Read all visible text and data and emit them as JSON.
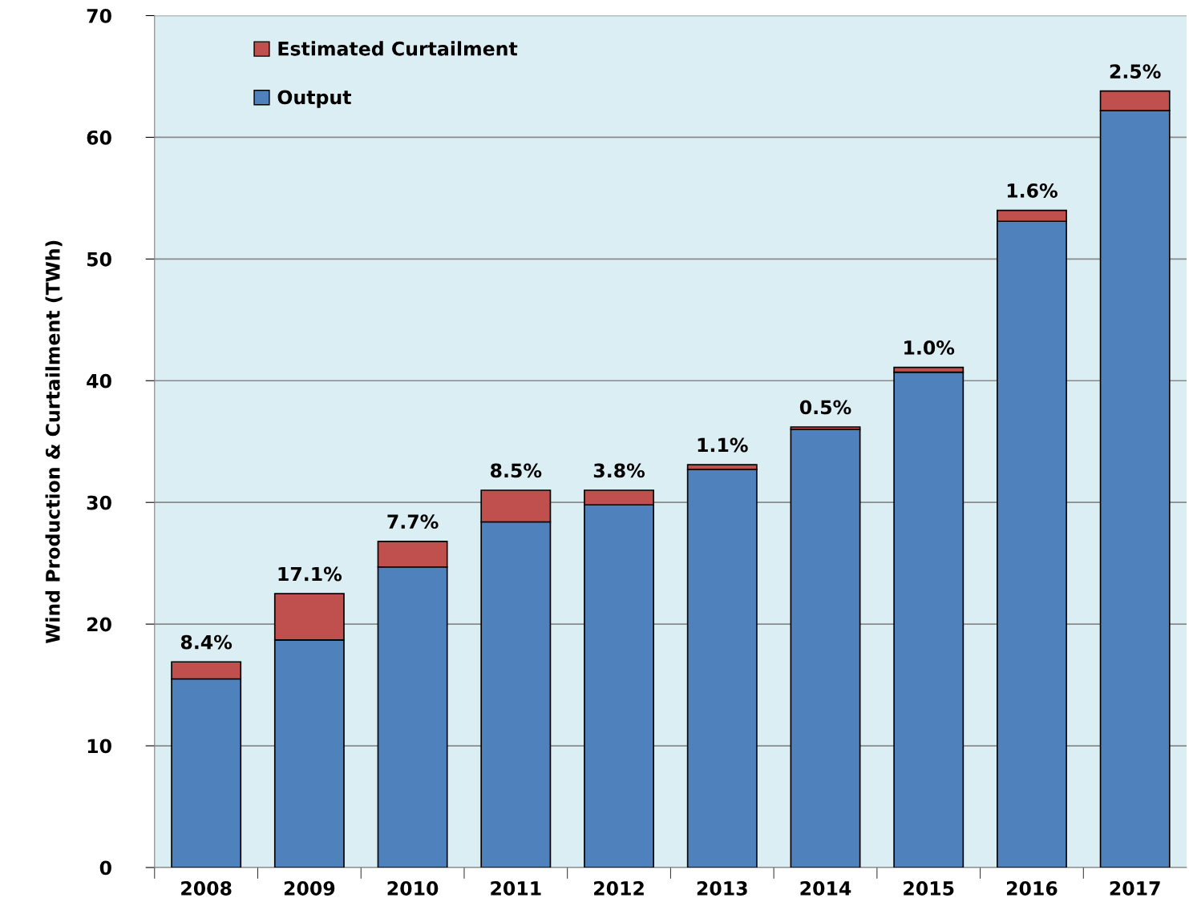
{
  "chart_data": {
    "type": "bar",
    "stacked": true,
    "ylabel": "Wind Production & Curtailment (TWh)",
    "categories": [
      "2008",
      "2009",
      "2010",
      "2011",
      "2012",
      "2013",
      "2014",
      "2015",
      "2016",
      "2017"
    ],
    "series": [
      {
        "name": "Output",
        "color": "#4f81bd",
        "values": [
          15.5,
          18.7,
          24.7,
          28.4,
          29.8,
          32.7,
          36.0,
          40.7,
          53.1,
          62.2
        ]
      },
      {
        "name": "Estimated Curtailment",
        "color": "#c0504d",
        "values": [
          1.4,
          3.8,
          2.1,
          2.6,
          1.2,
          0.4,
          0.2,
          0.4,
          0.9,
          1.6
        ]
      }
    ],
    "annotations": [
      {
        "text": "8.4%",
        "x": "2008",
        "y": 16.9
      },
      {
        "text": "17.1%",
        "x": "2009",
        "y": 22.5
      },
      {
        "text": "7.7%",
        "x": "2010",
        "y": 26.8
      },
      {
        "text": "8.5%",
        "x": "2011",
        "y": 31.0
      },
      {
        "text": "3.8%",
        "x": "2012",
        "y": 31.0
      },
      {
        "text": "1.1%",
        "x": "2013",
        "y": 33.1
      },
      {
        "text": "0.5%",
        "x": "2014",
        "y": 36.2
      },
      {
        "text": "1.0%",
        "x": "2015",
        "y": 41.1
      },
      {
        "text": "1.6%",
        "x": "2016",
        "y": 54.0
      },
      {
        "text": "2.5%",
        "x": "2017",
        "y": 63.8
      }
    ],
    "ylim": [
      0,
      70
    ],
    "yticks": [
      0,
      10,
      20,
      30,
      40,
      50,
      60,
      70
    ],
    "grid": "y",
    "legend": "top left"
  }
}
